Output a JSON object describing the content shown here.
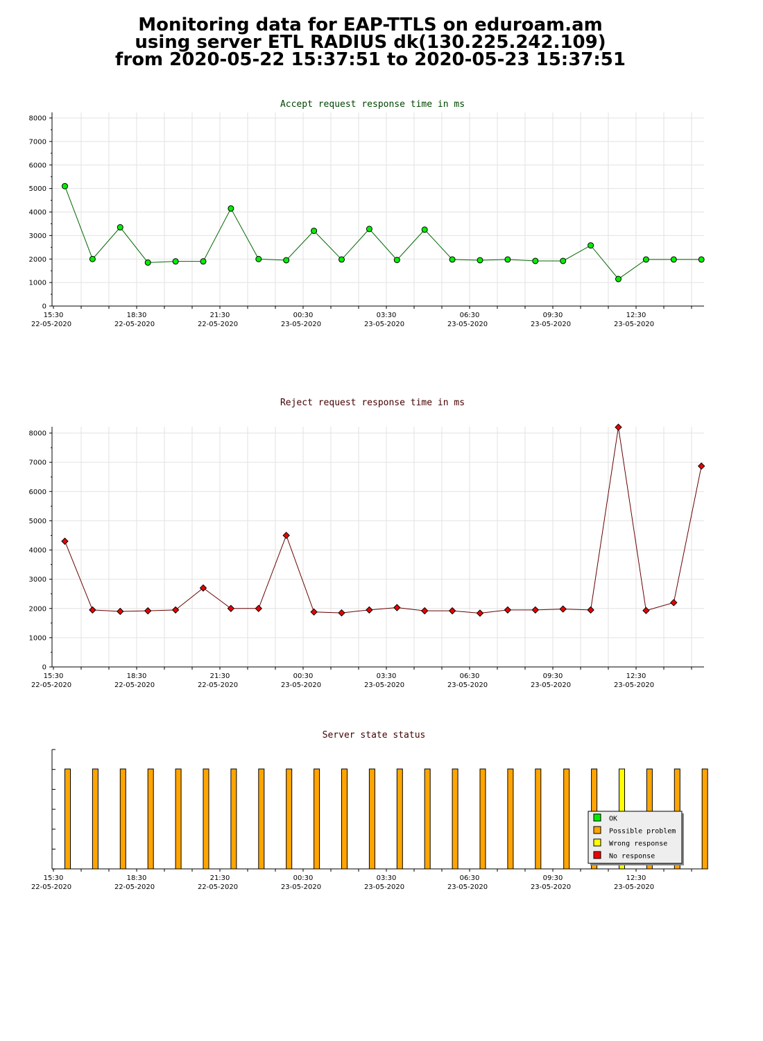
{
  "page": {
    "title_lines": [
      "Monitoring data for EAP-TTLS on eduroam.am",
      "using server ETL RADIUS dk(130.225.242.109)",
      "from 2020-05-22 15:37:51 to 2020-05-23 15:37:51"
    ]
  },
  "colors": {
    "accept_point": "#00ee00",
    "accept_line": "#006600",
    "reject_point": "#ee0000",
    "reject_line": "#660000",
    "grid": "#e2e2e2",
    "ok": "#00ee00",
    "possible_problem": "#ffa500",
    "wrong_response": "#ffff00",
    "no_response": "#ee0000"
  },
  "chart_data": [
    {
      "type": "line",
      "title": "Accept request response time in ms",
      "ylim": [
        0,
        8000
      ],
      "yticks": [
        "0",
        "1000",
        "2000",
        "3000",
        "4000",
        "5000",
        "6000",
        "7000",
        "8000"
      ],
      "xticks": [
        {
          "time": "15:30",
          "date": "22-05-2020"
        },
        {
          "time": "18:30",
          "date": "22-05-2020"
        },
        {
          "time": "21:30",
          "date": "22-05-2020"
        },
        {
          "time": "00:30",
          "date": "23-05-2020"
        },
        {
          "time": "03:30",
          "date": "23-05-2020"
        },
        {
          "time": "06:30",
          "date": "23-05-2020"
        },
        {
          "time": "09:30",
          "date": "23-05-2020"
        },
        {
          "time": "12:30",
          "date": "23-05-2020"
        }
      ],
      "x_first": "2020-05-22 15:30",
      "x_step_minutes": 60,
      "x_samples": [
        "2020-05-22 15:37",
        "2020-05-22 16:37",
        "2020-05-22 17:37",
        "2020-05-22 18:37",
        "2020-05-22 19:37",
        "2020-05-22 20:37",
        "2020-05-22 21:37",
        "2020-05-22 22:37",
        "2020-05-22 23:37",
        "2020-05-23 00:37",
        "2020-05-23 01:37",
        "2020-05-23 02:37",
        "2020-05-23 03:37",
        "2020-05-23 04:37",
        "2020-05-23 05:37",
        "2020-05-23 06:37",
        "2020-05-23 07:37",
        "2020-05-23 08:37",
        "2020-05-23 09:37",
        "2020-05-23 10:37",
        "2020-05-23 11:37",
        "2020-05-23 12:37",
        "2020-05-23 13:37",
        "2020-05-23 14:37"
      ],
      "values": [
        5100,
        2000,
        3350,
        1850,
        1900,
        1900,
        4150,
        2000,
        1950,
        3200,
        1980,
        3280,
        1960,
        3250,
        1980,
        1950,
        1980,
        1920,
        1920,
        2580,
        1150,
        1980,
        1980,
        1980
      ],
      "grid": true
    },
    {
      "type": "line",
      "title": "Reject request response time in ms",
      "ylim": [
        0,
        8000
      ],
      "yticks": [
        "0",
        "1000",
        "2000",
        "3000",
        "4000",
        "5000",
        "6000",
        "7000",
        "8000"
      ],
      "xticks": [
        {
          "time": "15:30",
          "date": "22-05-2020"
        },
        {
          "time": "18:30",
          "date": "22-05-2020"
        },
        {
          "time": "21:30",
          "date": "22-05-2020"
        },
        {
          "time": "00:30",
          "date": "23-05-2020"
        },
        {
          "time": "03:30",
          "date": "23-05-2020"
        },
        {
          "time": "06:30",
          "date": "23-05-2020"
        },
        {
          "time": "09:30",
          "date": "23-05-2020"
        },
        {
          "time": "12:30",
          "date": "23-05-2020"
        }
      ],
      "values": [
        4300,
        1950,
        1900,
        1920,
        1950,
        2700,
        2000,
        2000,
        4500,
        1880,
        1850,
        1950,
        2030,
        1920,
        1920,
        1840,
        1950,
        1950,
        1980,
        1950,
        8200,
        1930,
        2200,
        6870
      ],
      "grid": true
    },
    {
      "type": "bar",
      "title": "Server state status",
      "xticks": [
        {
          "time": "15:30",
          "date": "22-05-2020"
        },
        {
          "time": "18:30",
          "date": "22-05-2020"
        },
        {
          "time": "21:30",
          "date": "22-05-2020"
        },
        {
          "time": "00:30",
          "date": "23-05-2020"
        },
        {
          "time": "03:30",
          "date": "23-05-2020"
        },
        {
          "time": "06:30",
          "date": "23-05-2020"
        },
        {
          "time": "09:30",
          "date": "23-05-2020"
        },
        {
          "time": "12:30",
          "date": "23-05-2020"
        }
      ],
      "states": [
        "possible_problem",
        "possible_problem",
        "possible_problem",
        "possible_problem",
        "possible_problem",
        "possible_problem",
        "possible_problem",
        "possible_problem",
        "possible_problem",
        "possible_problem",
        "possible_problem",
        "possible_problem",
        "possible_problem",
        "possible_problem",
        "possible_problem",
        "possible_problem",
        "possible_problem",
        "possible_problem",
        "possible_problem",
        "possible_problem",
        "wrong_response",
        "possible_problem",
        "possible_problem",
        "possible_problem"
      ],
      "legend": [
        {
          "key": "ok",
          "label": "OK"
        },
        {
          "key": "possible_problem",
          "label": "Possible problem"
        },
        {
          "key": "wrong_response",
          "label": "Wrong response"
        },
        {
          "key": "no_response",
          "label": "No response"
        }
      ],
      "legend_position": "bottom-right",
      "grid": false
    }
  ]
}
